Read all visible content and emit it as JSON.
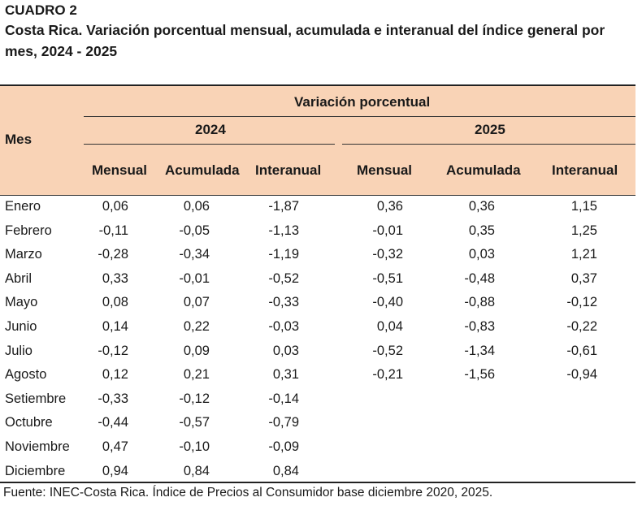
{
  "heading": {
    "cuadro": "CUADRO 2",
    "title": "Costa Rica. Variación porcentual mensual, acumulada e interanual del índice general por mes, 2024 - 2025"
  },
  "table": {
    "row_header": "Mes",
    "group_header": "Variación porcentual",
    "year1": "2024",
    "year2": "2025",
    "columns": [
      "Mensual",
      "Acumulada",
      "Interanual",
      "Mensual",
      "Acumulada",
      "Interanual"
    ],
    "rows": [
      {
        "mes": "Enero",
        "v": [
          "0,06",
          "0,06",
          "-1,87",
          "0,36",
          "0,36",
          "1,15"
        ]
      },
      {
        "mes": "Febrero",
        "v": [
          "-0,11",
          "-0,05",
          "-1,13",
          "-0,01",
          "0,35",
          "1,25"
        ]
      },
      {
        "mes": "Marzo",
        "v": [
          "-0,28",
          "-0,34",
          "-1,19",
          "-0,32",
          "0,03",
          "1,21"
        ]
      },
      {
        "mes": "Abril",
        "v": [
          "0,33",
          "-0,01",
          "-0,52",
          "-0,51",
          "-0,48",
          "0,37"
        ]
      },
      {
        "mes": "Mayo",
        "v": [
          "0,08",
          "0,07",
          "-0,33",
          "-0,40",
          "-0,88",
          "-0,12"
        ]
      },
      {
        "mes": "Junio",
        "v": [
          "0,14",
          "0,22",
          "-0,03",
          "0,04",
          "-0,83",
          "-0,22"
        ]
      },
      {
        "mes": "Julio",
        "v": [
          "-0,12",
          "0,09",
          "0,03",
          "-0,52",
          "-1,34",
          "-0,61"
        ]
      },
      {
        "mes": "Agosto",
        "v": [
          "0,12",
          "0,21",
          "0,31",
          "-0,21",
          "-1,56",
          "-0,94"
        ]
      },
      {
        "mes": "Setiembre",
        "v": [
          "-0,33",
          "-0,12",
          "-0,14",
          "",
          "",
          ""
        ]
      },
      {
        "mes": "Octubre",
        "v": [
          "-0,44",
          "-0,57",
          "-0,79",
          "",
          "",
          ""
        ]
      },
      {
        "mes": "Noviembre",
        "v": [
          "0,47",
          "-0,10",
          "-0,09",
          "",
          "",
          ""
        ]
      },
      {
        "mes": "Diciembre",
        "v": [
          "0,94",
          "0,84",
          "0,84",
          "",
          "",
          ""
        ]
      }
    ]
  },
  "source": "Fuente: INEC-Costa Rica. Índice de Precios al Consumidor base diciembre 2020, 2025.",
  "colors": {
    "header_bg": "#f9d3b6"
  }
}
